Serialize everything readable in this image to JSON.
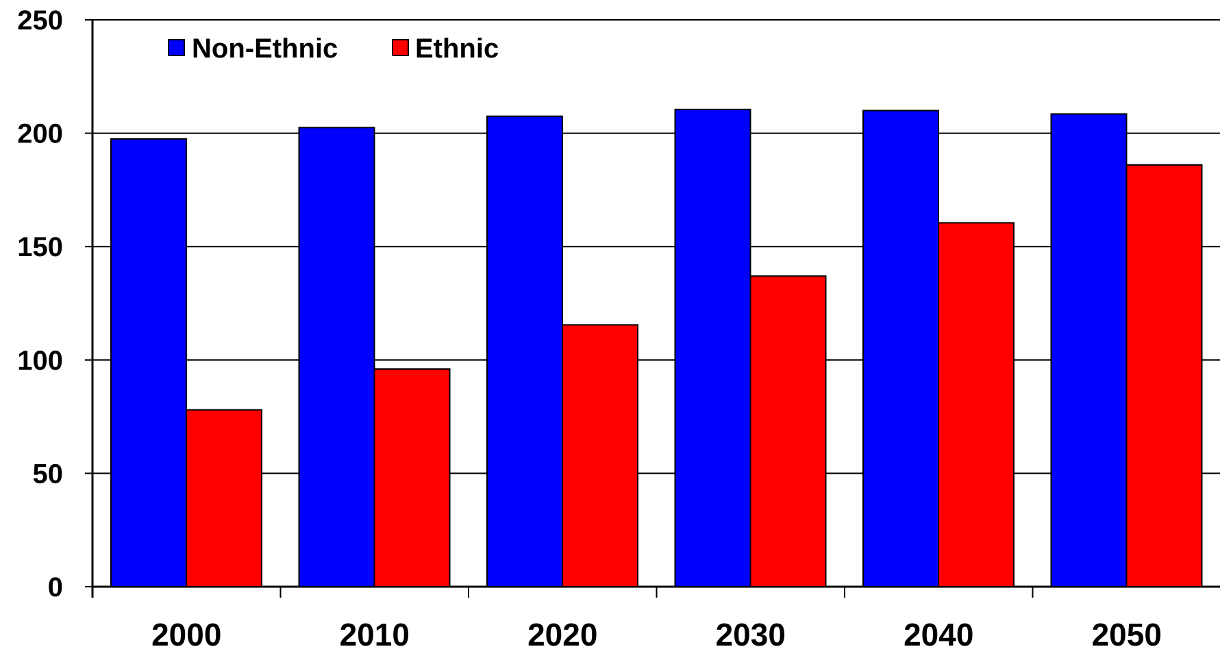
{
  "chart_data": {
    "type": "bar",
    "title": "",
    "xlabel": "",
    "ylabel": "",
    "categories": [
      "2000",
      "2010",
      "2020",
      "2030",
      "2040",
      "2050"
    ],
    "series": [
      {
        "name": "Non-Ethnic",
        "values": [
          197.5,
          202.5,
          207.5,
          210.5,
          210,
          208.5
        ],
        "color": "#0000FF"
      },
      {
        "name": "Ethnic",
        "values": [
          78,
          96,
          115.5,
          137,
          160.5,
          186
        ],
        "color": "#FF0000"
      }
    ],
    "ylim": [
      0,
      250
    ],
    "yticks": [
      "0",
      "50",
      "100",
      "150",
      "200",
      "250"
    ],
    "grid": true,
    "legend_position": "top-left"
  }
}
